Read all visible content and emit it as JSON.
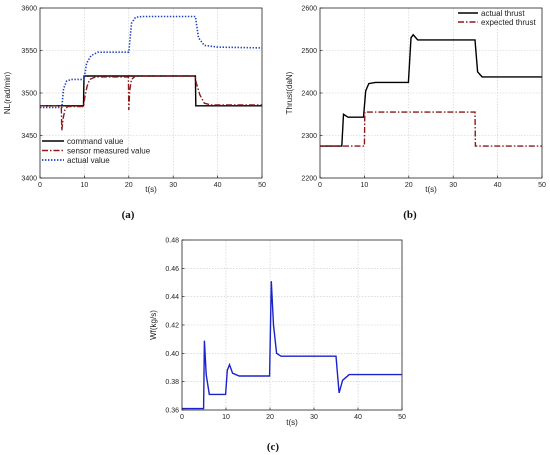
{
  "chart_data": [
    {
      "type": "line",
      "panel_label": "(a)",
      "xlabel": "t(s)",
      "ylabel": "NL(rad/min)",
      "xlim": [
        0,
        50
      ],
      "ylim": [
        3400,
        3600
      ],
      "xticks": [
        0,
        10,
        20,
        30,
        40,
        50
      ],
      "yticks": [
        3400,
        3450,
        3500,
        3550,
        3600
      ],
      "grid": true,
      "legend": "bottom-left",
      "series": [
        {
          "name": "command value",
          "color": "#000000",
          "style": "solid",
          "points": [
            [
              0,
              3485
            ],
            [
              9.8,
              3485
            ],
            [
              9.9,
              3520
            ],
            [
              35,
              3520
            ],
            [
              35.1,
              3485
            ],
            [
              50,
              3485
            ]
          ]
        },
        {
          "name": "sensor measured value",
          "color": "#8b1a1a",
          "style": "dashdot",
          "points": [
            [
              0,
              3485
            ],
            [
              4.8,
              3485
            ],
            [
              4.9,
              3456
            ],
            [
              5.2,
              3470
            ],
            [
              5.6,
              3480
            ],
            [
              6.2,
              3484
            ],
            [
              9.8,
              3484
            ],
            [
              10.1,
              3495
            ],
            [
              10.6,
              3508
            ],
            [
              11.2,
              3516
            ],
            [
              12.5,
              3519
            ],
            [
              19.9,
              3519
            ],
            [
              20,
              3480
            ],
            [
              20.2,
              3503
            ],
            [
              20.6,
              3516
            ],
            [
              21.5,
              3520
            ],
            [
              34.9,
              3520
            ],
            [
              35.2,
              3512
            ],
            [
              36,
              3498
            ],
            [
              37,
              3488
            ],
            [
              38.5,
              3486
            ],
            [
              50,
              3486
            ]
          ]
        },
        {
          "name": "actual value",
          "color": "#1f3fbf",
          "style": "dotted",
          "points": [
            [
              0,
              3483
            ],
            [
              4.9,
              3483
            ],
            [
              5.3,
              3505
            ],
            [
              6,
              3514
            ],
            [
              7,
              3516
            ],
            [
              9.9,
              3516
            ],
            [
              10.5,
              3535
            ],
            [
              11.5,
              3544
            ],
            [
              13,
              3548
            ],
            [
              20,
              3548
            ],
            [
              20.6,
              3582
            ],
            [
              21.5,
              3589
            ],
            [
              23,
              3590
            ],
            [
              35,
              3590
            ],
            [
              35.7,
              3565
            ],
            [
              37,
              3556
            ],
            [
              40,
              3554
            ],
            [
              50,
              3553
            ]
          ]
        }
      ]
    },
    {
      "type": "line",
      "panel_label": "(b)",
      "xlabel": "t(s)",
      "ylabel": "Thrust(daN)",
      "xlim": [
        0,
        50
      ],
      "ylim": [
        2200,
        2600
      ],
      "xticks": [
        0,
        10,
        20,
        30,
        40,
        50
      ],
      "yticks": [
        2200,
        2300,
        2400,
        2500,
        2600
      ],
      "grid": true,
      "legend": "top-right",
      "series": [
        {
          "name": "actual thrust",
          "color": "#000000",
          "style": "solid",
          "points": [
            [
              0,
              2275
            ],
            [
              4.9,
              2275
            ],
            [
              5.3,
              2350
            ],
            [
              6.3,
              2343
            ],
            [
              9.8,
              2343
            ],
            [
              10.3,
              2405
            ],
            [
              11,
              2422
            ],
            [
              12.5,
              2425
            ],
            [
              19.9,
              2425
            ],
            [
              20.5,
              2530
            ],
            [
              21,
              2537
            ],
            [
              22,
              2525
            ],
            [
              34.9,
              2525
            ],
            [
              35.5,
              2450
            ],
            [
              36.5,
              2438
            ],
            [
              50,
              2438
            ]
          ]
        },
        {
          "name": "expected thrust",
          "color": "#8b1a1a",
          "style": "dashdot",
          "points": [
            [
              0,
              2275
            ],
            [
              10,
              2275
            ],
            [
              10.1,
              2355
            ],
            [
              34.9,
              2355
            ],
            [
              35,
              2275
            ],
            [
              50,
              2275
            ]
          ]
        }
      ]
    },
    {
      "type": "line",
      "panel_label": "(c)",
      "xlabel": "t(s)",
      "ylabel": "Wf(kg/s)",
      "xlim": [
        0,
        50
      ],
      "ylim": [
        0.36,
        0.48
      ],
      "xticks": [
        0,
        10,
        20,
        30,
        40,
        50
      ],
      "yticks": [
        0.36,
        0.38,
        0.4,
        0.42,
        0.44,
        0.46,
        0.48
      ],
      "grid": true,
      "legend": "none",
      "series": [
        {
          "name": "",
          "color": "#1a22cc",
          "style": "solid",
          "points": [
            [
              0,
              0.361
            ],
            [
              4.9,
              0.361
            ],
            [
              5.1,
              0.409
            ],
            [
              5.5,
              0.385
            ],
            [
              6.2,
              0.371
            ],
            [
              7.5,
              0.371
            ],
            [
              9.9,
              0.371
            ],
            [
              10.3,
              0.388
            ],
            [
              10.8,
              0.392
            ],
            [
              11.5,
              0.386
            ],
            [
              13,
              0.384
            ],
            [
              19.9,
              0.384
            ],
            [
              20.3,
              0.451
            ],
            [
              20.8,
              0.42
            ],
            [
              21.5,
              0.4
            ],
            [
              22.5,
              0.398
            ],
            [
              35,
              0.398
            ],
            [
              35.7,
              0.372
            ],
            [
              36.5,
              0.381
            ],
            [
              38,
              0.385
            ],
            [
              50,
              0.385
            ]
          ]
        }
      ]
    }
  ]
}
